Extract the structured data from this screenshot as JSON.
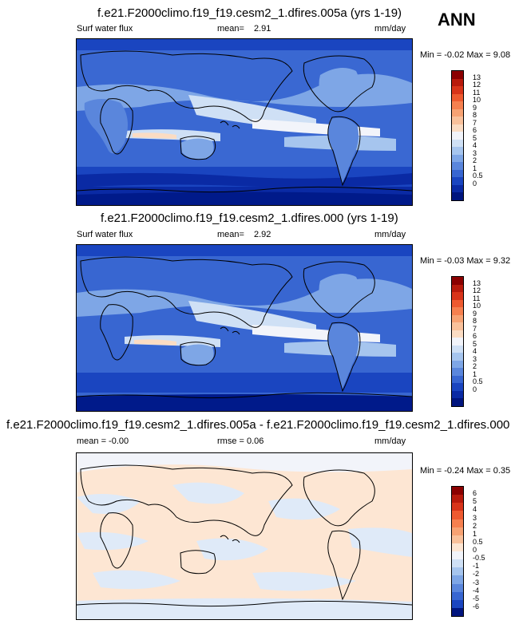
{
  "season": "ANN",
  "panels": [
    {
      "title": "f.e21.F2000climo.f19_f19.cesm2_1.dfires.005a (yrs 1-19)",
      "variable": "Surf water flux",
      "stat_label": "mean=",
      "stat_value": "2.91",
      "units": "mm/day",
      "minmax": "Min = -0.02 Max = 9.08"
    },
    {
      "title": "f.e21.F2000climo.f19_f19.cesm2_1.dfires.000 (yrs 1-19)",
      "variable": "Surf water flux",
      "stat_label": "mean=",
      "stat_value": "2.92",
      "units": "mm/day",
      "minmax": "Min = -0.03 Max = 9.32"
    },
    {
      "title": "f.e21.F2000climo.f19_f19.cesm2_1.dfires.005a - f.e21.F2000climo.f19_f19.cesm2_1.dfires.000",
      "mean_text": "mean = -0.00",
      "rmse_text": "rmse = 0.06",
      "units": "mm/day",
      "minmax": "Min = -0.24 Max = 0.35"
    }
  ],
  "colorbar_abs": {
    "labels": [
      "13",
      "12",
      "11",
      "10",
      "9",
      "8",
      "7",
      "6",
      "5",
      "4",
      "3",
      "2",
      "1",
      "0.5",
      "0"
    ],
    "colors": [
      "#8b0000",
      "#b81a0c",
      "#d8341a",
      "#ee5a30",
      "#f6804f",
      "#f7a273",
      "#f9c19b",
      "#fbdcc3",
      "#f2f4fa",
      "#cfe0f5",
      "#a6c5ee",
      "#7ea6e6",
      "#5a86dc",
      "#3866d1",
      "#1a45c0",
      "#0a2aa4",
      "#00157e"
    ]
  },
  "colorbar_diff": {
    "labels": [
      "6",
      "5",
      "4",
      "3",
      "2",
      "1",
      "0.5",
      "0",
      "-0.5",
      "-1",
      "-2",
      "-3",
      "-4",
      "-5",
      "-6"
    ],
    "colors": [
      "#8b0000",
      "#b81a0c",
      "#d8341a",
      "#ee5a30",
      "#f6804f",
      "#f7a273",
      "#f9c19b",
      "#fde6d3",
      "#f2f4fa",
      "#cfe0f5",
      "#a6c5ee",
      "#7ea6e6",
      "#5a86dc",
      "#3866d1",
      "#1a45c0",
      "#00157e"
    ]
  }
}
